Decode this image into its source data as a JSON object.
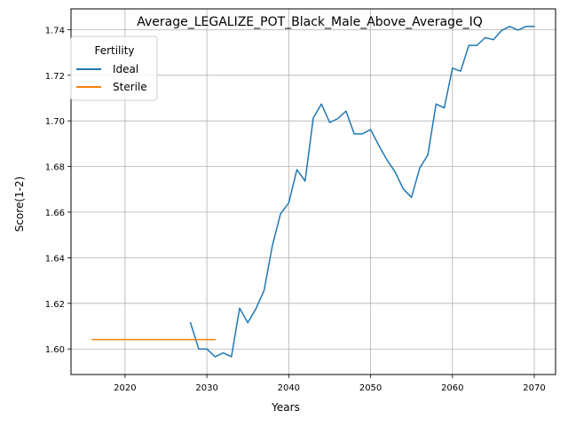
{
  "chart_data": {
    "type": "line",
    "title": "Average_LEGALIZE_POT_Black_Male_Above_Average_IQ",
    "xlabel": "Years",
    "ylabel": "Score(1-2)",
    "xlim": [
      2013.4,
      2072.6
    ],
    "ylim": [
      1.5888,
      1.7491
    ],
    "xticks": [
      2020,
      2030,
      2040,
      2050,
      2060,
      2070
    ],
    "yticks": [
      1.6,
      1.62,
      1.64,
      1.66,
      1.68,
      1.7,
      1.72,
      1.74
    ],
    "xtick_labels": [
      "2020",
      "2030",
      "2040",
      "2050",
      "2060",
      "2070"
    ],
    "ytick_labels": [
      "1.60",
      "1.62",
      "1.64",
      "1.66",
      "1.68",
      "1.70",
      "1.72",
      "1.74"
    ],
    "grid": true,
    "legend": {
      "title": "Fertility",
      "placement": "top-left"
    },
    "series": [
      {
        "name": "Ideal",
        "color": "#1f77b4",
        "x": [
          2028,
          2029,
          2030,
          2031,
          2032,
          2033,
          2034,
          2035,
          2036,
          2037,
          2038,
          2039,
          2040,
          2041,
          2042,
          2043,
          2044,
          2045,
          2046,
          2047,
          2048,
          2049,
          2050,
          2051,
          2052,
          2053,
          2054,
          2055,
          2056,
          2057,
          2058,
          2059,
          2060,
          2061,
          2062,
          2063,
          2064,
          2065,
          2066,
          2067,
          2068,
          2069,
          2070
        ],
        "y": [
          1.6115,
          1.6,
          1.6,
          1.5966,
          1.5983,
          1.5966,
          1.6179,
          1.6115,
          1.6177,
          1.6258,
          1.6453,
          1.6593,
          1.664,
          1.6786,
          1.6736,
          1.7013,
          1.7074,
          1.6993,
          1.701,
          1.7043,
          1.6943,
          1.6943,
          1.6962,
          1.6893,
          1.6829,
          1.6776,
          1.6701,
          1.6665,
          1.6793,
          1.6851,
          1.7074,
          1.7057,
          1.7231,
          1.7218,
          1.7331,
          1.7331,
          1.7365,
          1.7356,
          1.7396,
          1.7414,
          1.7398,
          1.7414,
          1.7414
        ]
      },
      {
        "name": "Sterile",
        "color": "#ff7f0e",
        "x": [
          2016,
          2017,
          2018,
          2019,
          2020,
          2021,
          2022,
          2023,
          2024,
          2025,
          2026,
          2027,
          2028,
          2029,
          2030,
          2031
        ],
        "y": [
          1.6041,
          1.6041,
          1.6041,
          1.6041,
          1.6041,
          1.6041,
          1.6041,
          1.6041,
          1.6041,
          1.6041,
          1.6041,
          1.6041,
          1.6041,
          1.6041,
          1.6041,
          1.6041
        ]
      }
    ]
  }
}
